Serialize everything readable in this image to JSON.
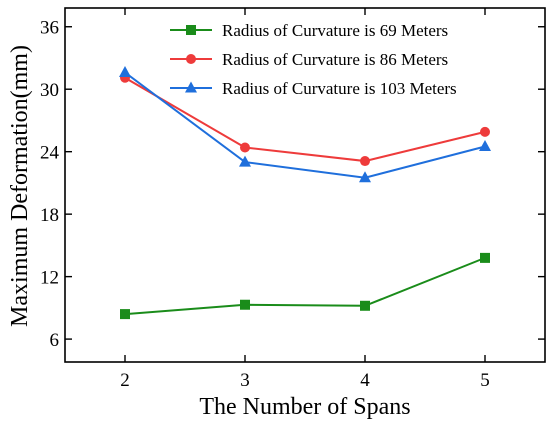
{
  "chart_data": {
    "type": "line",
    "title": "",
    "xlabel": "The Number of Spans",
    "ylabel": "Maximum Deformation(mm)",
    "x": [
      2,
      3,
      4,
      5
    ],
    "x_ticks": [
      "2",
      "3",
      "4",
      "5"
    ],
    "xlim": [
      1.5,
      5.5
    ],
    "y_ticks": [
      "6",
      "12",
      "18",
      "24",
      "30",
      "36"
    ],
    "ylim": [
      3.8,
      37.8
    ],
    "grid": false,
    "legend_position": "top-right",
    "series": [
      {
        "name": "Radius of Curvature is 69 Meters",
        "color": "#1a8c1a",
        "marker": "square",
        "values": [
          8.4,
          9.3,
          9.2,
          13.8
        ]
      },
      {
        "name": "Radius of Curvature is 86 Meters",
        "color": "#ee3b3b",
        "marker": "circle",
        "values": [
          31.1,
          24.4,
          23.1,
          25.9
        ]
      },
      {
        "name": "Radius of Curvature is 103 Meters",
        "color": "#1f6fdc",
        "marker": "triangle",
        "values": [
          31.6,
          23.0,
          21.5,
          24.5
        ]
      }
    ]
  }
}
